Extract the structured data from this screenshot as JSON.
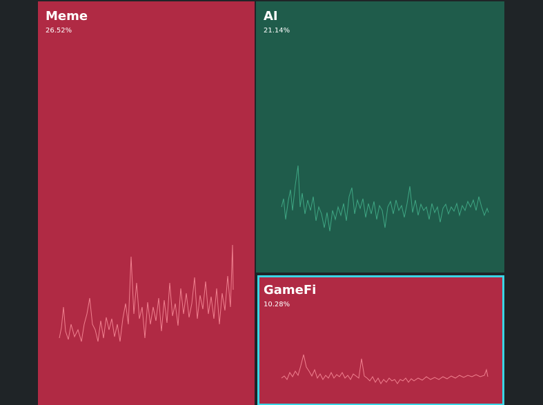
{
  "tiles": [
    {
      "name": "Meme",
      "change": "26.52%"
    },
    {
      "name": "AI",
      "change": "21.14%"
    },
    {
      "name": "GameFi",
      "change": "10.28%"
    }
  ]
}
